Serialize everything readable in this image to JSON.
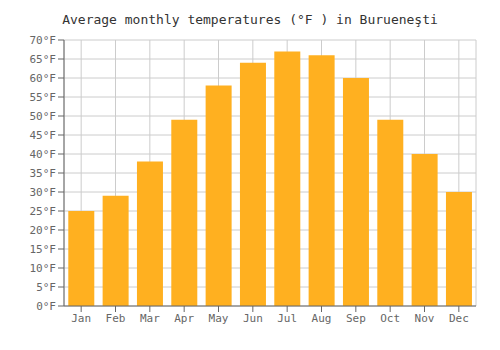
{
  "chart_data": {
    "type": "bar",
    "title": "Average monthly temperatures (°F ) in Burueneşti",
    "categories": [
      "Jan",
      "Feb",
      "Mar",
      "Apr",
      "May",
      "Jun",
      "Jul",
      "Aug",
      "Sep",
      "Oct",
      "Nov",
      "Dec"
    ],
    "values": [
      25,
      29,
      38,
      49,
      58,
      64,
      67,
      66,
      60,
      49,
      40,
      30
    ],
    "color": "#FFB020",
    "ylim": [
      0,
      70
    ],
    "yticks": [
      {
        "value": 0,
        "label": "0°F"
      },
      {
        "value": 5,
        "label": "5°F"
      },
      {
        "value": 10,
        "label": "10°F"
      },
      {
        "value": 15,
        "label": "15°F"
      },
      {
        "value": 20,
        "label": "20°F"
      },
      {
        "value": 25,
        "label": "25°F"
      },
      {
        "value": 30,
        "label": "30°F"
      },
      {
        "value": 35,
        "label": "35°F"
      },
      {
        "value": 40,
        "label": "40°F"
      },
      {
        "value": 45,
        "label": "45°F"
      },
      {
        "value": 50,
        "label": "50°F"
      },
      {
        "value": 55,
        "label": "55°F"
      },
      {
        "value": 60,
        "label": "60°F"
      },
      {
        "value": 65,
        "label": "65°F"
      },
      {
        "value": 70,
        "label": "70°F"
      }
    ],
    "grid": true
  }
}
